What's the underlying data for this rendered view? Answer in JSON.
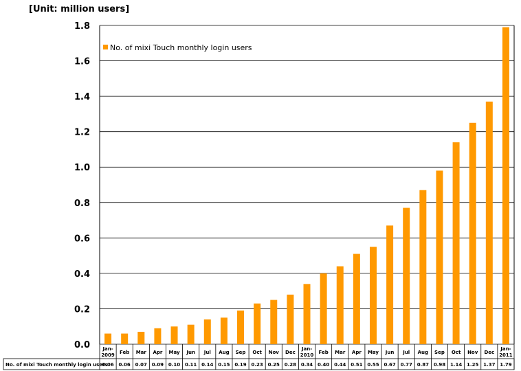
{
  "unit_label": "[Unit: million users]",
  "chart_data": {
    "type": "bar",
    "categories": [
      [
        "Jan-",
        "2009"
      ],
      [
        "Feb"
      ],
      [
        "Mar"
      ],
      [
        "Apr"
      ],
      [
        "May"
      ],
      [
        "Jun"
      ],
      [
        "Jul"
      ],
      [
        "Aug"
      ],
      [
        "Sep"
      ],
      [
        "Oct"
      ],
      [
        "Nov"
      ],
      [
        "Dec"
      ],
      [
        "Jan-",
        "2010"
      ],
      [
        "Feb"
      ],
      [
        "Mar"
      ],
      [
        "Apr"
      ],
      [
        "May"
      ],
      [
        "Jun"
      ],
      [
        "Jul"
      ],
      [
        "Aug"
      ],
      [
        "Sep"
      ],
      [
        "Oct"
      ],
      [
        "Nov"
      ],
      [
        "Dec"
      ],
      [
        "Jan-",
        "2011"
      ]
    ],
    "series": [
      {
        "name": "No. of mixi Touch monthly login users",
        "values": [
          0.06,
          0.06,
          0.07,
          0.09,
          0.1,
          0.11,
          0.14,
          0.15,
          0.19,
          0.23,
          0.25,
          0.28,
          0.34,
          0.4,
          0.44,
          0.51,
          0.55,
          0.67,
          0.77,
          0.87,
          0.98,
          1.14,
          1.25,
          1.37,
          1.79
        ],
        "labels": [
          "0.06",
          "0.06",
          "0.07",
          "0.09",
          "0.10",
          "0.11",
          "0.14",
          "0.15",
          "0.19",
          "0.23",
          "0.25",
          "0.28",
          "0.34",
          "0.40",
          "0.44",
          "0.51",
          "0.55",
          "0.67",
          "0.77",
          "0.87",
          "0.98",
          "1.14",
          "1.25",
          "1.37",
          "1.79"
        ]
      }
    ],
    "ylim": [
      0,
      1.8
    ],
    "yticks": [
      "0.0",
      "0.2",
      "0.4",
      "0.6",
      "0.8",
      "1.0",
      "1.2",
      "1.4",
      "1.6",
      "1.8"
    ],
    "grid": true,
    "legend_position": "top-left",
    "bar_color": "#ff9900",
    "data_table": true
  }
}
